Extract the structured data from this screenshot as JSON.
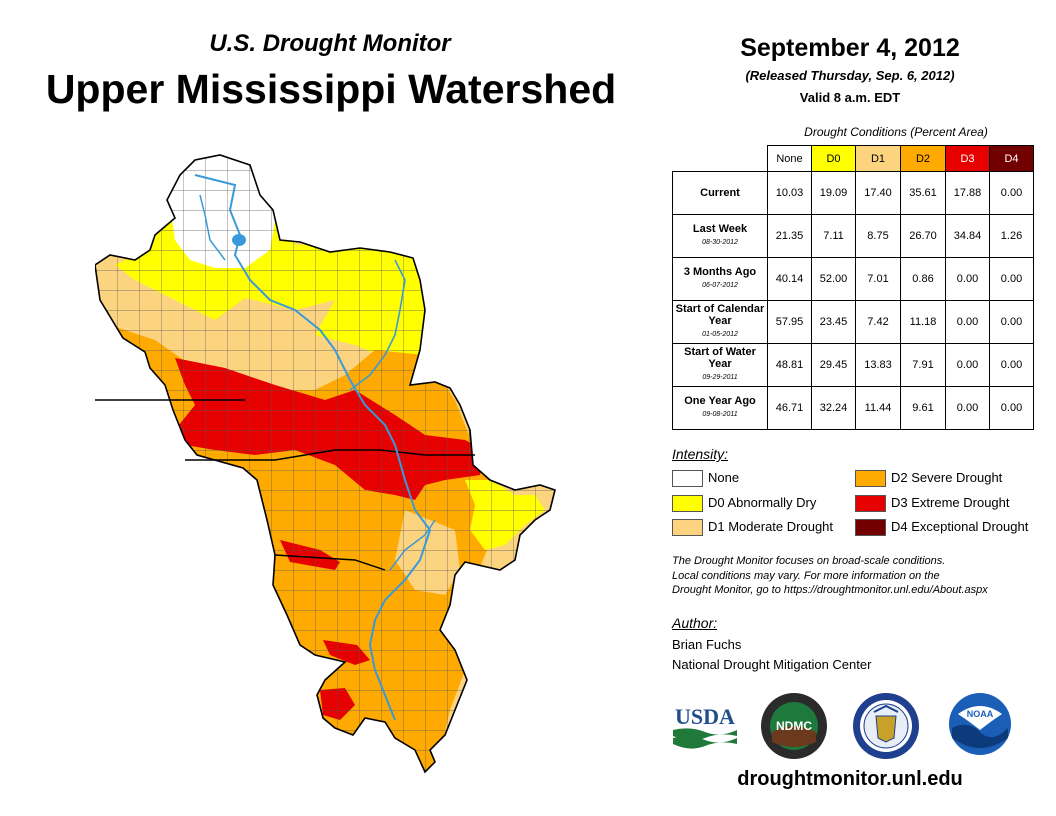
{
  "header": {
    "subtitle": "U.S. Drought Monitor",
    "title": "Upper Mississippi Watershed",
    "date": "September 4, 2012",
    "released": "(Released Thursday, Sep. 6, 2012)",
    "valid": "Valid 8 a.m. EDT"
  },
  "table": {
    "caption": "Drought Conditions (Percent Area)",
    "columns": [
      "None",
      "D0",
      "D1",
      "D2",
      "D3",
      "D4"
    ],
    "column_colors": [
      "#ffffff",
      "#ffff00",
      "#fcd37f",
      "#ffaa00",
      "#e60000",
      "#730000"
    ],
    "rows": [
      {
        "label": "Current",
        "sublabel": "",
        "values": [
          "10.03",
          "19.09",
          "17.40",
          "35.61",
          "17.88",
          "0.00"
        ]
      },
      {
        "label": "Last Week",
        "sublabel": "08-30-2012",
        "values": [
          "21.35",
          "7.11",
          "8.75",
          "26.70",
          "34.84",
          "1.26"
        ]
      },
      {
        "label": "3 Months Ago",
        "sublabel": "06-07-2012",
        "values": [
          "40.14",
          "52.00",
          "7.01",
          "0.86",
          "0.00",
          "0.00"
        ]
      },
      {
        "label": "Start of Calendar Year",
        "sublabel": "01-05-2012",
        "values": [
          "57.95",
          "23.45",
          "7.42",
          "11.18",
          "0.00",
          "0.00"
        ]
      },
      {
        "label": "Start of Water Year",
        "sublabel": "09-29-2011",
        "values": [
          "48.81",
          "29.45",
          "13.83",
          "7.91",
          "0.00",
          "0.00"
        ]
      },
      {
        "label": "One Year Ago",
        "sublabel": "09-08-2011",
        "values": [
          "46.71",
          "32.24",
          "11.44",
          "9.61",
          "0.00",
          "0.00"
        ]
      }
    ]
  },
  "legend": {
    "title": "Intensity:",
    "items": [
      {
        "label": "None",
        "color": "#ffffff"
      },
      {
        "label": "D0 Abnormally Dry",
        "color": "#ffff00"
      },
      {
        "label": "D1 Moderate Drought",
        "color": "#fcd37f"
      },
      {
        "label": "D2 Severe Drought",
        "color": "#ffaa00"
      },
      {
        "label": "D3 Extreme Drought",
        "color": "#e60000"
      },
      {
        "label": "D4 Exceptional Drought",
        "color": "#730000"
      }
    ]
  },
  "note": {
    "line1": "The Drought Monitor focuses on broad-scale conditions.",
    "line2": "Local conditions may vary. For more information on the",
    "line3": "Drought Monitor, go to https://droughtmonitor.unl.edu/About.aspx"
  },
  "author": {
    "label": "Author:",
    "name": "Brian Fuchs",
    "org": "National Drought Mitigation Center"
  },
  "logos": {
    "usda": "USDA",
    "ndmc": "NDMC",
    "noaa": "NOAA"
  },
  "website": "droughtmonitor.unl.edu",
  "colors": {
    "river": "#3a9ad9",
    "county_line": "#555555"
  }
}
